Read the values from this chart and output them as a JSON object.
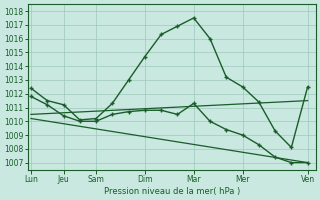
{
  "bg_color": "#c8e8e0",
  "grid_color": "#a0c8bc",
  "line_color": "#1a5c2a",
  "xlabel": "Pression niveau de la mer( hPa )",
  "ylim": [
    1006.5,
    1018.5
  ],
  "yticks": [
    1007,
    1008,
    1009,
    1010,
    1011,
    1012,
    1013,
    1014,
    1015,
    1016,
    1017,
    1018
  ],
  "xtick_labels": [
    "Lun",
    "Jeu",
    "Sam",
    "Dim",
    "Mar",
    "Mer",
    "Ven"
  ],
  "xtick_positions": [
    0,
    2,
    4,
    7,
    10,
    13,
    17
  ],
  "xlim": [
    -0.2,
    17.5
  ],
  "s1_x": [
    0,
    1,
    2,
    3,
    4,
    5,
    6,
    7,
    8,
    9,
    10,
    11,
    12,
    13,
    14,
    15,
    16,
    17
  ],
  "s1_y": [
    1012.4,
    1011.5,
    1011.2,
    1010.1,
    1010.2,
    1011.3,
    1013.0,
    1014.7,
    1016.3,
    1016.9,
    1017.5,
    1016.0,
    1013.2,
    1012.5,
    1011.4,
    1009.3,
    1008.1,
    1012.5
  ],
  "s2_x": [
    0,
    1,
    2,
    3,
    4,
    5,
    6,
    7,
    8,
    9,
    10,
    11,
    12,
    13,
    14,
    15,
    16,
    17
  ],
  "s2_y": [
    1011.8,
    1011.2,
    1010.4,
    1010.0,
    1010.0,
    1010.5,
    1010.7,
    1010.8,
    1010.8,
    1010.5,
    1011.3,
    1010.0,
    1009.4,
    1009.0,
    1008.3,
    1007.4,
    1007.0,
    1007.0
  ],
  "trend1_x": [
    0,
    17
  ],
  "trend1_y": [
    1010.5,
    1011.5
  ],
  "trend2_x": [
    0,
    17
  ],
  "trend2_y": [
    1010.2,
    1007.0
  ]
}
